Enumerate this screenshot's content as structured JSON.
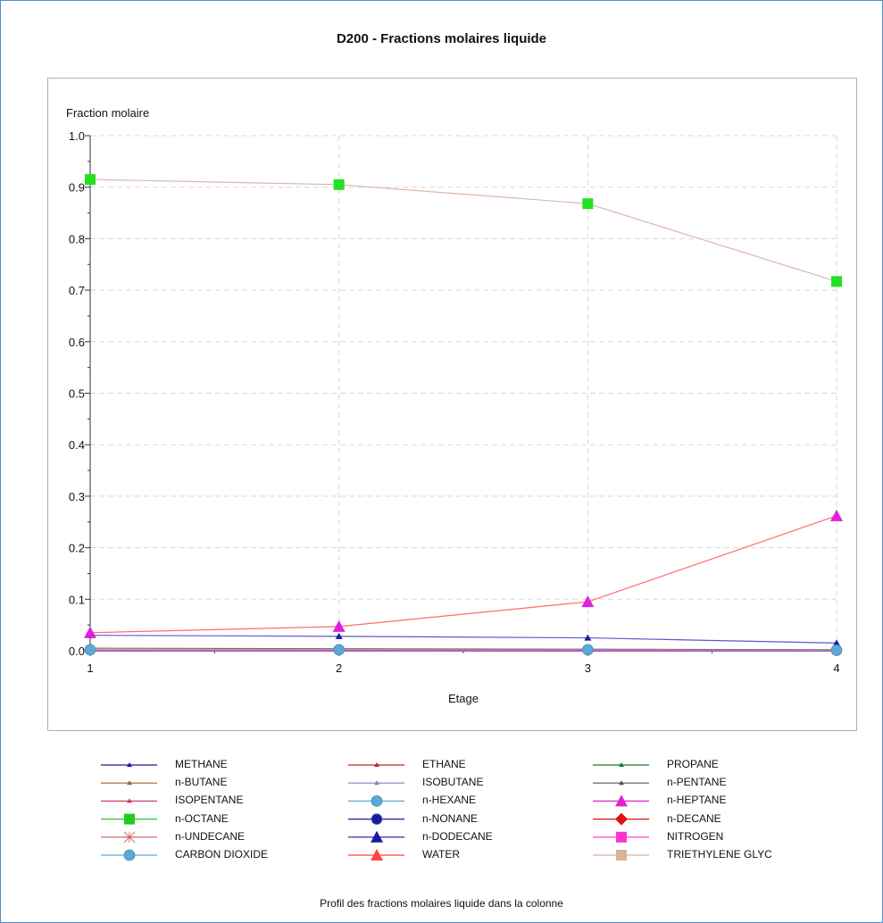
{
  "chart_data": {
    "type": "line",
    "title": "D200 - Fractions molaires liquide",
    "ylabel": "Fraction molaire",
    "xlabel": "Etage",
    "caption": "Profil des fractions molaires liquide dans la colonne",
    "x": [
      1,
      2,
      3,
      4
    ],
    "xlim": [
      1,
      4
    ],
    "ylim": [
      0,
      1
    ],
    "xticks": [
      "1",
      "2",
      "3",
      "4"
    ],
    "yticks": [
      "0.0",
      "0.1",
      "0.2",
      "0.3",
      "0.4",
      "0.5",
      "0.6",
      "0.7",
      "0.8",
      "0.9",
      "1.0"
    ],
    "grid": true,
    "legend_position": "bottom",
    "series": [
      {
        "name": "METHANE",
        "color": "#1a1a9c",
        "marker": "small-triangle",
        "values": [
          0.0,
          0.0,
          0.0,
          0.0
        ]
      },
      {
        "name": "ETHANE",
        "color": "#c0282c",
        "marker": "small-triangle",
        "values": [
          0.0,
          0.0,
          0.0,
          0.0
        ]
      },
      {
        "name": "PROPANE",
        "color": "#1e7a2e",
        "marker": "small-triangle",
        "values": [
          0.0,
          0.0,
          0.0,
          0.0
        ]
      },
      {
        "name": "n-BUTANE",
        "color": "#a0642a",
        "marker": "small-triangle",
        "values": [
          0.005,
          0.004,
          0.003,
          0.002
        ]
      },
      {
        "name": "ISOBUTANE",
        "color": "#7b86c8",
        "marker": "small-triangle",
        "values": [
          0.0,
          0.0,
          0.0,
          0.0
        ]
      },
      {
        "name": "n-PENTANE",
        "color": "#555555",
        "marker": "small-triangle",
        "values": [
          0.0,
          0.0,
          0.0,
          0.0
        ]
      },
      {
        "name": "ISOPENTANE",
        "color": "#c8406a",
        "marker": "small-triangle",
        "values": [
          0.0,
          0.0,
          0.0,
          0.0
        ]
      },
      {
        "name": "n-HEXANE",
        "color": "#5aa9d6",
        "marker": "circle",
        "values": [
          0.0,
          0.0,
          0.0,
          0.0
        ]
      },
      {
        "name": "n-HEPTANE",
        "color": "#e020d0",
        "marker": "triangle",
        "values": [
          0.0,
          0.0,
          0.0,
          0.0
        ]
      },
      {
        "name": "n-OCTANE",
        "color": "#22cc22",
        "marker": "square",
        "values": [
          0.0,
          0.0,
          0.0,
          0.0
        ]
      },
      {
        "name": "n-NONANE",
        "color": "#1a1aa0",
        "marker": "circle",
        "values": [
          0.0,
          0.0,
          0.0,
          0.0
        ]
      },
      {
        "name": "n-DECANE",
        "color": "#e01010",
        "marker": "diamond",
        "values": [
          0.0,
          0.0,
          0.0,
          0.0
        ]
      },
      {
        "name": "n-UNDECANE",
        "color": "#d06060",
        "marker": "star",
        "values": [
          0.0,
          0.0,
          0.0,
          0.0
        ]
      },
      {
        "name": "n-DODECANE",
        "color": "#1a1aa0",
        "marker": "triangle",
        "values": [
          0.03,
          0.028,
          0.025,
          0.015
        ]
      },
      {
        "name": "NITROGEN",
        "color": "#ff33cc",
        "marker": "square",
        "values": [
          0.0,
          0.0,
          0.0,
          0.0
        ]
      },
      {
        "name": "CARBON DIOXIDE",
        "color": "#5aa9d6",
        "marker": "circle",
        "values": [
          0.002,
          0.002,
          0.002,
          0.001
        ]
      },
      {
        "name": "WATER",
        "color": "#ff4444",
        "marker": "triangle",
        "values": [
          0.035,
          0.047,
          0.095,
          0.262
        ]
      },
      {
        "name": "TRIETHYLENE GLYC",
        "color": "#d8b49a",
        "marker": "square",
        "values": [
          0.915,
          0.905,
          0.868,
          0.717
        ]
      }
    ]
  }
}
